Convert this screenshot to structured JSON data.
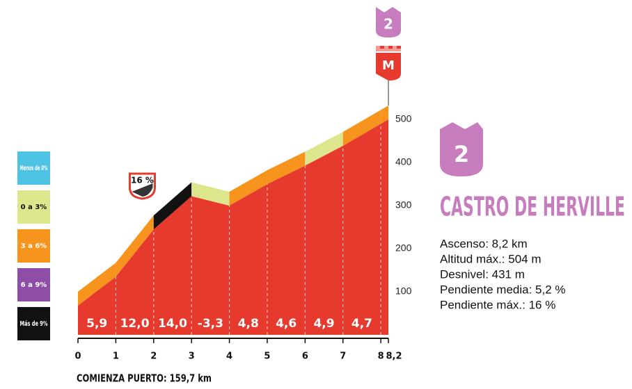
{
  "chart_data": {
    "type": "area",
    "x": [
      0,
      1,
      2,
      3,
      4,
      5,
      6,
      7,
      8,
      8.2
    ],
    "altitude": [
      68,
      135,
      245,
      322,
      300,
      350,
      393,
      439,
      490,
      500
    ],
    "fill_color": "#e63a2e",
    "xlim": [
      0,
      8.2
    ],
    "ylim": [
      0,
      600
    ],
    "xticks": [
      0,
      1,
      2,
      3,
      4,
      5,
      6,
      7,
      8,
      {
        "value": 8.2,
        "label": "8,2"
      }
    ],
    "yticks": [
      100,
      200,
      300,
      400,
      500
    ],
    "segments": {
      "values": [
        5.9,
        12.0,
        14.0,
        -3.3,
        4.8,
        4.6,
        4.9,
        4.7
      ],
      "value_labels": [
        "5,9",
        "12,0",
        "14,0",
        "-3,3",
        "4,8",
        "4,6",
        "4,9",
        "4,7"
      ]
    },
    "band_colors": [
      "#f7941d",
      "#f7941d",
      "#111111",
      "#dde68c",
      "#f7941d",
      "#f7941d",
      "#dde68c",
      "#f7941d",
      "#f7941d"
    ],
    "legend": [
      {
        "label": "Menos de 0%",
        "color": "#4fc3e3"
      },
      {
        "label": "0 a 3%",
        "color": "#dde68c"
      },
      {
        "label": "3 a 6%",
        "color": "#f7941d"
      },
      {
        "label": "6 a 9%",
        "color": "#8e4ea8"
      },
      {
        "label": "Más de 9%",
        "color": "#111111"
      }
    ],
    "max_gradient_badge": "16 %",
    "category_badge": "2",
    "finish_badge": "M",
    "x_label": "COMIENZA PUERTO: 159,7 km"
  },
  "climb": {
    "category": "2",
    "name": "CASTRO DE HERVILLE",
    "stats": [
      "Ascenso: 8,2 km",
      "Altitud máx.: 504 m",
      "Desnivel: 431 m",
      "Pendiente media: 5,2 %",
      "Pendiente máx.: 16 %"
    ]
  }
}
